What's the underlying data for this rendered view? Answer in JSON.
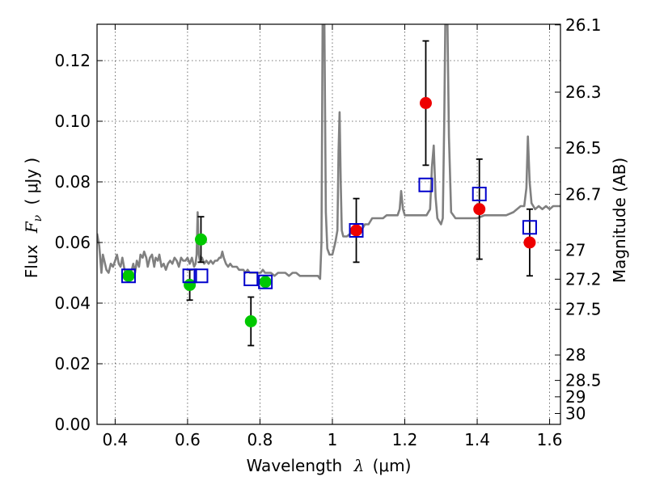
{
  "chart_data": {
    "type": "scatter",
    "xlabel_prefix": "Wavelength",
    "xlabel_unit": "(μm)",
    "ylabel_prefix": "Flux",
    "ylabel_unit": "( μJy )",
    "y2label": "Magnitude (AB)",
    "xlim": [
      0.35,
      1.63
    ],
    "ylim": [
      0.0,
      0.132
    ],
    "grid": true,
    "x_ticks": [
      {
        "value": 0.4,
        "label": "0.4"
      },
      {
        "value": 0.6,
        "label": "0.6"
      },
      {
        "value": 0.8,
        "label": "0.8"
      },
      {
        "value": 1.0,
        "label": "1"
      },
      {
        "value": 1.2,
        "label": "1.2"
      },
      {
        "value": 1.4,
        "label": "1.4"
      },
      {
        "value": 1.6,
        "label": "1.6"
      }
    ],
    "y_ticks": [
      {
        "value": 0.0,
        "label": "0.00"
      },
      {
        "value": 0.02,
        "label": "0.02"
      },
      {
        "value": 0.04,
        "label": "0.04"
      },
      {
        "value": 0.06,
        "label": "0.06"
      },
      {
        "value": 0.08,
        "label": "0.08"
      },
      {
        "value": 0.1,
        "label": "0.10"
      },
      {
        "value": 0.12,
        "label": "0.12"
      }
    ],
    "y2_ticks": [
      {
        "flux": 0.1318,
        "label": "26.1"
      },
      {
        "flux": 0.1096,
        "label": "26.3"
      },
      {
        "flux": 0.0912,
        "label": "26.5"
      },
      {
        "flux": 0.0759,
        "label": "26.7"
      },
      {
        "flux": 0.0575,
        "label": "27"
      },
      {
        "flux": 0.0479,
        "label": "27.2"
      },
      {
        "flux": 0.038,
        "label": "27.5"
      },
      {
        "flux": 0.0229,
        "label": "28"
      },
      {
        "flux": 0.0145,
        "label": "28.5"
      },
      {
        "flux": 0.0091,
        "label": "29"
      },
      {
        "flux": 0.0036,
        "label": "30"
      }
    ],
    "colors": {
      "model": "#808080",
      "green": "#00c800",
      "red": "#ee0000",
      "model_box": "#0000cc",
      "errorbar": "#000000"
    },
    "model_spectrum": [
      [
        0.35,
        0.063
      ],
      [
        0.356,
        0.059
      ],
      [
        0.362,
        0.05
      ],
      [
        0.366,
        0.056
      ],
      [
        0.37,
        0.054
      ],
      [
        0.376,
        0.051
      ],
      [
        0.382,
        0.05
      ],
      [
        0.388,
        0.053
      ],
      [
        0.394,
        0.052
      ],
      [
        0.4,
        0.054
      ],
      [
        0.405,
        0.056
      ],
      [
        0.41,
        0.053
      ],
      [
        0.415,
        0.052
      ],
      [
        0.42,
        0.055
      ],
      [
        0.426,
        0.051
      ],
      [
        0.432,
        0.049
      ],
      [
        0.438,
        0.051
      ],
      [
        0.444,
        0.05
      ],
      [
        0.45,
        0.053
      ],
      [
        0.455,
        0.05
      ],
      [
        0.46,
        0.054
      ],
      [
        0.466,
        0.052
      ],
      [
        0.47,
        0.056
      ],
      [
        0.476,
        0.055
      ],
      [
        0.48,
        0.057
      ],
      [
        0.486,
        0.055
      ],
      [
        0.49,
        0.052
      ],
      [
        0.496,
        0.055
      ],
      [
        0.502,
        0.056
      ],
      [
        0.508,
        0.052
      ],
      [
        0.512,
        0.055
      ],
      [
        0.518,
        0.054
      ],
      [
        0.522,
        0.056
      ],
      [
        0.528,
        0.052
      ],
      [
        0.534,
        0.053
      ],
      [
        0.54,
        0.051
      ],
      [
        0.546,
        0.053
      ],
      [
        0.552,
        0.054
      ],
      [
        0.558,
        0.053
      ],
      [
        0.564,
        0.055
      ],
      [
        0.57,
        0.054
      ],
      [
        0.576,
        0.052
      ],
      [
        0.582,
        0.055
      ],
      [
        0.588,
        0.054
      ],
      [
        0.594,
        0.054
      ],
      [
        0.6,
        0.055
      ],
      [
        0.606,
        0.053
      ],
      [
        0.612,
        0.055
      ],
      [
        0.618,
        0.052
      ],
      [
        0.622,
        0.053
      ],
      [
        0.625,
        0.056
      ],
      [
        0.628,
        0.07
      ],
      [
        0.631,
        0.056
      ],
      [
        0.634,
        0.054
      ],
      [
        0.64,
        0.055
      ],
      [
        0.646,
        0.053
      ],
      [
        0.652,
        0.054
      ],
      [
        0.658,
        0.053
      ],
      [
        0.664,
        0.054
      ],
      [
        0.67,
        0.053
      ],
      [
        0.676,
        0.054
      ],
      [
        0.682,
        0.054
      ],
      [
        0.688,
        0.055
      ],
      [
        0.692,
        0.055
      ],
      [
        0.696,
        0.057
      ],
      [
        0.7,
        0.055
      ],
      [
        0.706,
        0.053
      ],
      [
        0.712,
        0.052
      ],
      [
        0.718,
        0.053
      ],
      [
        0.724,
        0.052
      ],
      [
        0.73,
        0.052
      ],
      [
        0.736,
        0.052
      ],
      [
        0.742,
        0.051
      ],
      [
        0.748,
        0.051
      ],
      [
        0.754,
        0.051
      ],
      [
        0.76,
        0.05
      ],
      [
        0.766,
        0.051
      ],
      [
        0.772,
        0.05
      ],
      [
        0.778,
        0.05
      ],
      [
        0.784,
        0.05
      ],
      [
        0.79,
        0.05
      ],
      [
        0.796,
        0.05
      ],
      [
        0.802,
        0.05
      ],
      [
        0.808,
        0.051
      ],
      [
        0.814,
        0.05
      ],
      [
        0.82,
        0.05
      ],
      [
        0.83,
        0.05
      ],
      [
        0.84,
        0.049
      ],
      [
        0.85,
        0.05
      ],
      [
        0.86,
        0.05
      ],
      [
        0.87,
        0.05
      ],
      [
        0.88,
        0.049
      ],
      [
        0.89,
        0.05
      ],
      [
        0.9,
        0.05
      ],
      [
        0.91,
        0.049
      ],
      [
        0.92,
        0.049
      ],
      [
        0.93,
        0.049
      ],
      [
        0.94,
        0.049
      ],
      [
        0.95,
        0.049
      ],
      [
        0.96,
        0.049
      ],
      [
        0.966,
        0.048
      ],
      [
        0.97,
        0.06
      ],
      [
        0.973,
        0.132
      ],
      [
        0.978,
        0.132
      ],
      [
        0.982,
        0.07
      ],
      [
        0.986,
        0.058
      ],
      [
        0.992,
        0.056
      ],
      [
        1.0,
        0.056
      ],
      [
        1.008,
        0.06
      ],
      [
        1.014,
        0.064
      ],
      [
        1.017,
        0.09
      ],
      [
        1.02,
        0.103
      ],
      [
        1.023,
        0.08
      ],
      [
        1.026,
        0.064
      ],
      [
        1.03,
        0.062
      ],
      [
        1.04,
        0.062
      ],
      [
        1.05,
        0.063
      ],
      [
        1.06,
        0.063
      ],
      [
        1.07,
        0.064
      ],
      [
        1.08,
        0.064
      ],
      [
        1.09,
        0.066
      ],
      [
        1.1,
        0.066
      ],
      [
        1.11,
        0.068
      ],
      [
        1.12,
        0.068
      ],
      [
        1.13,
        0.068
      ],
      [
        1.14,
        0.068
      ],
      [
        1.15,
        0.069
      ],
      [
        1.16,
        0.069
      ],
      [
        1.17,
        0.069
      ],
      [
        1.18,
        0.069
      ],
      [
        1.186,
        0.071
      ],
      [
        1.19,
        0.077
      ],
      [
        1.195,
        0.071
      ],
      [
        1.2,
        0.069
      ],
      [
        1.21,
        0.069
      ],
      [
        1.22,
        0.069
      ],
      [
        1.23,
        0.069
      ],
      [
        1.24,
        0.069
      ],
      [
        1.25,
        0.069
      ],
      [
        1.26,
        0.069
      ],
      [
        1.27,
        0.071
      ],
      [
        1.275,
        0.085
      ],
      [
        1.28,
        0.092
      ],
      [
        1.285,
        0.075
      ],
      [
        1.29,
        0.068
      ],
      [
        1.3,
        0.066
      ],
      [
        1.305,
        0.068
      ],
      [
        1.309,
        0.1
      ],
      [
        1.312,
        0.132
      ],
      [
        1.318,
        0.132
      ],
      [
        1.322,
        0.095
      ],
      [
        1.328,
        0.07
      ],
      [
        1.34,
        0.068
      ],
      [
        1.36,
        0.068
      ],
      [
        1.38,
        0.068
      ],
      [
        1.4,
        0.068
      ],
      [
        1.42,
        0.069
      ],
      [
        1.44,
        0.069
      ],
      [
        1.46,
        0.069
      ],
      [
        1.48,
        0.069
      ],
      [
        1.5,
        0.07
      ],
      [
        1.51,
        0.071
      ],
      [
        1.52,
        0.072
      ],
      [
        1.53,
        0.072
      ],
      [
        1.536,
        0.078
      ],
      [
        1.54,
        0.095
      ],
      [
        1.545,
        0.08
      ],
      [
        1.55,
        0.073
      ],
      [
        1.56,
        0.071
      ],
      [
        1.57,
        0.072
      ],
      [
        1.58,
        0.071
      ],
      [
        1.59,
        0.072
      ],
      [
        1.6,
        0.071
      ],
      [
        1.61,
        0.072
      ],
      [
        1.62,
        0.072
      ],
      [
        1.63,
        0.072
      ]
    ],
    "observed_green": [
      {
        "x": 0.437,
        "y": 0.049,
        "err": 0.0
      },
      {
        "x": 0.606,
        "y": 0.046,
        "err": 0.005
      },
      {
        "x": 0.637,
        "y": 0.061,
        "err": 0.0075
      },
      {
        "x": 0.775,
        "y": 0.034,
        "err": 0.008
      },
      {
        "x": 0.815,
        "y": 0.047,
        "err": 0.0
      }
    ],
    "observed_red": [
      {
        "x": 1.066,
        "y": 0.064,
        "err": 0.0105
      },
      {
        "x": 1.258,
        "y": 0.106,
        "err": 0.0205
      },
      {
        "x": 1.406,
        "y": 0.071,
        "err": 0.0165
      },
      {
        "x": 1.545,
        "y": 0.06,
        "err": 0.011
      }
    ],
    "model_photometry": [
      {
        "x": 0.437,
        "y": 0.049
      },
      {
        "x": 0.606,
        "y": 0.049
      },
      {
        "x": 0.637,
        "y": 0.049
      },
      {
        "x": 0.775,
        "y": 0.048
      },
      {
        "x": 0.815,
        "y": 0.047
      },
      {
        "x": 1.066,
        "y": 0.064
      },
      {
        "x": 1.258,
        "y": 0.079
      },
      {
        "x": 1.406,
        "y": 0.076
      },
      {
        "x": 1.545,
        "y": 0.065
      }
    ]
  }
}
